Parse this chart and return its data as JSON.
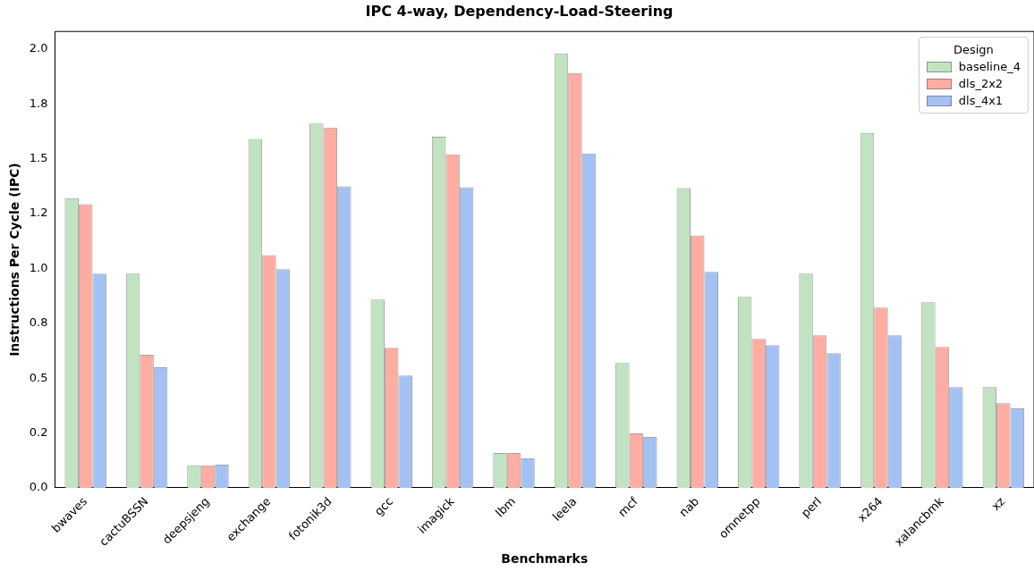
{
  "chart_data": {
    "type": "bar",
    "title": "IPC 4-way, Dependency-Load-Steering",
    "xlabel": "Benchmarks",
    "ylabel": "Instructions Per Cycle (IPC)",
    "legend_title": "Design",
    "legend": "top right",
    "grid": false,
    "categories": [
      "bwaves",
      "cactuBSSN",
      "deepsjeng",
      "exchange",
      "fotonik3d",
      "gcc",
      "imagick",
      "lbm",
      "leela",
      "mcf",
      "nab",
      "omnetpp",
      "perl",
      "x264",
      "xalancbmk",
      "xz"
    ],
    "ylim": [
      0,
      2.08
    ],
    "yticks": [
      {
        "value": 0,
        "label": "0.0"
      },
      {
        "value": 0.25,
        "label": "0.2"
      },
      {
        "value": 0.5,
        "label": "0.5"
      },
      {
        "value": 0.75,
        "label": "0.8"
      },
      {
        "value": 1,
        "label": "1.0"
      },
      {
        "value": 1.25,
        "label": "1.2"
      },
      {
        "value": 1.5,
        "label": "1.5"
      },
      {
        "value": 1.75,
        "label": "1.8"
      },
      {
        "value": 2,
        "label": "2.0"
      }
    ],
    "series": [
      {
        "name": "baseline_4",
        "color": "#c1e3c1",
        "values": [
          1.32,
          0.976,
          0.102,
          1.59,
          1.66,
          0.858,
          1.6,
          0.159,
          1.98,
          0.569,
          1.366,
          0.87,
          0.976,
          1.618,
          0.846,
          0.459
        ]
      },
      {
        "name": "dls_2x2",
        "color": "#ffaca2",
        "values": [
          1.293,
          0.606,
          0.102,
          1.061,
          1.642,
          0.638,
          1.52,
          0.159,
          1.89,
          0.248,
          1.15,
          0.679,
          0.695,
          0.821,
          0.642,
          0.386
        ]
      },
      {
        "name": "dls_4x1",
        "color": "#a4c1f4",
        "values": [
          0.976,
          0.549,
          0.106,
          0.996,
          1.374,
          0.512,
          1.37,
          0.134,
          1.524,
          0.232,
          0.984,
          0.65,
          0.614,
          0.695,
          0.459,
          0.362
        ]
      }
    ]
  }
}
